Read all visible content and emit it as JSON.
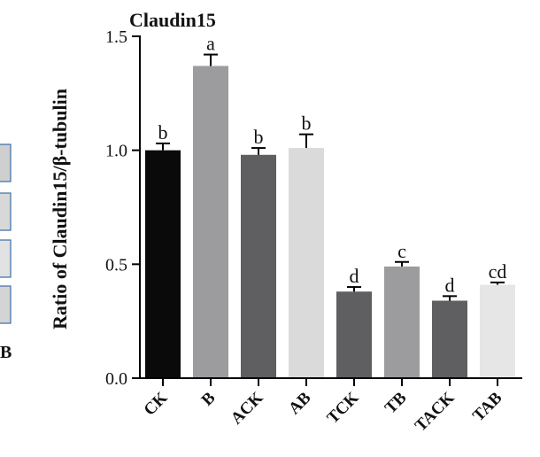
{
  "left_fragment": {
    "letter": "B"
  },
  "chart_data": {
    "type": "bar",
    "title": "Claudin15",
    "xlabel": "",
    "ylabel": "Ratio of Claudin15/β-tubulin",
    "ylim": [
      0,
      1.5
    ],
    "yticks": [
      "0.0",
      "0.5",
      "1.0",
      "1.5"
    ],
    "categories": [
      "CK",
      "B",
      "ACK",
      "AB",
      "TCK",
      "TB",
      "TACK",
      "TAB"
    ],
    "values": [
      1.0,
      1.37,
      0.98,
      1.01,
      0.38,
      0.49,
      0.34,
      0.41
    ],
    "errors": [
      0.03,
      0.05,
      0.03,
      0.06,
      0.02,
      0.02,
      0.02,
      0.01
    ],
    "significance": [
      "b",
      "a",
      "b",
      "b",
      "d",
      "c",
      "d",
      "cd"
    ],
    "colors": [
      "#0a0a0a",
      "#9c9c9e",
      "#5f5f61",
      "#dadada",
      "#5f5f61",
      "#9c9c9e",
      "#5f5f61",
      "#e6e6e6"
    ],
    "grid": false
  }
}
